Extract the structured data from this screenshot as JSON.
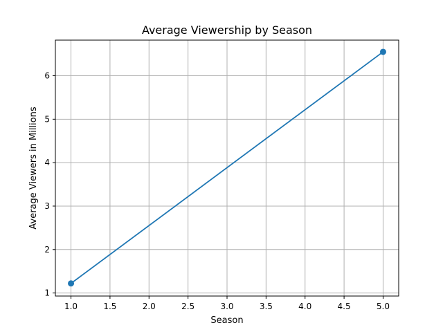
{
  "chart_data": {
    "type": "line",
    "title": "Average Viewership by Season",
    "xlabel": "Season",
    "ylabel": "Average Viewers in Millions",
    "x": [
      1.0,
      5.0
    ],
    "series": [
      {
        "values": [
          1.22,
          6.55
        ],
        "color": "#1f77b4",
        "marker": "circle"
      }
    ],
    "xlim": [
      0.8,
      5.2
    ],
    "ylim": [
      0.93,
      6.82
    ],
    "xticks": [
      1.0,
      1.5,
      2.0,
      2.5,
      3.0,
      3.5,
      4.0,
      4.5,
      5.0
    ],
    "xtick_labels": [
      "1.0",
      "1.5",
      "2.0",
      "2.5",
      "3.0",
      "3.5",
      "4.0",
      "4.5",
      "5.0"
    ],
    "yticks": [
      1,
      2,
      3,
      4,
      5,
      6
    ],
    "ytick_labels": [
      "1",
      "2",
      "3",
      "4",
      "5",
      "6"
    ],
    "grid": true,
    "legend": "none"
  }
}
